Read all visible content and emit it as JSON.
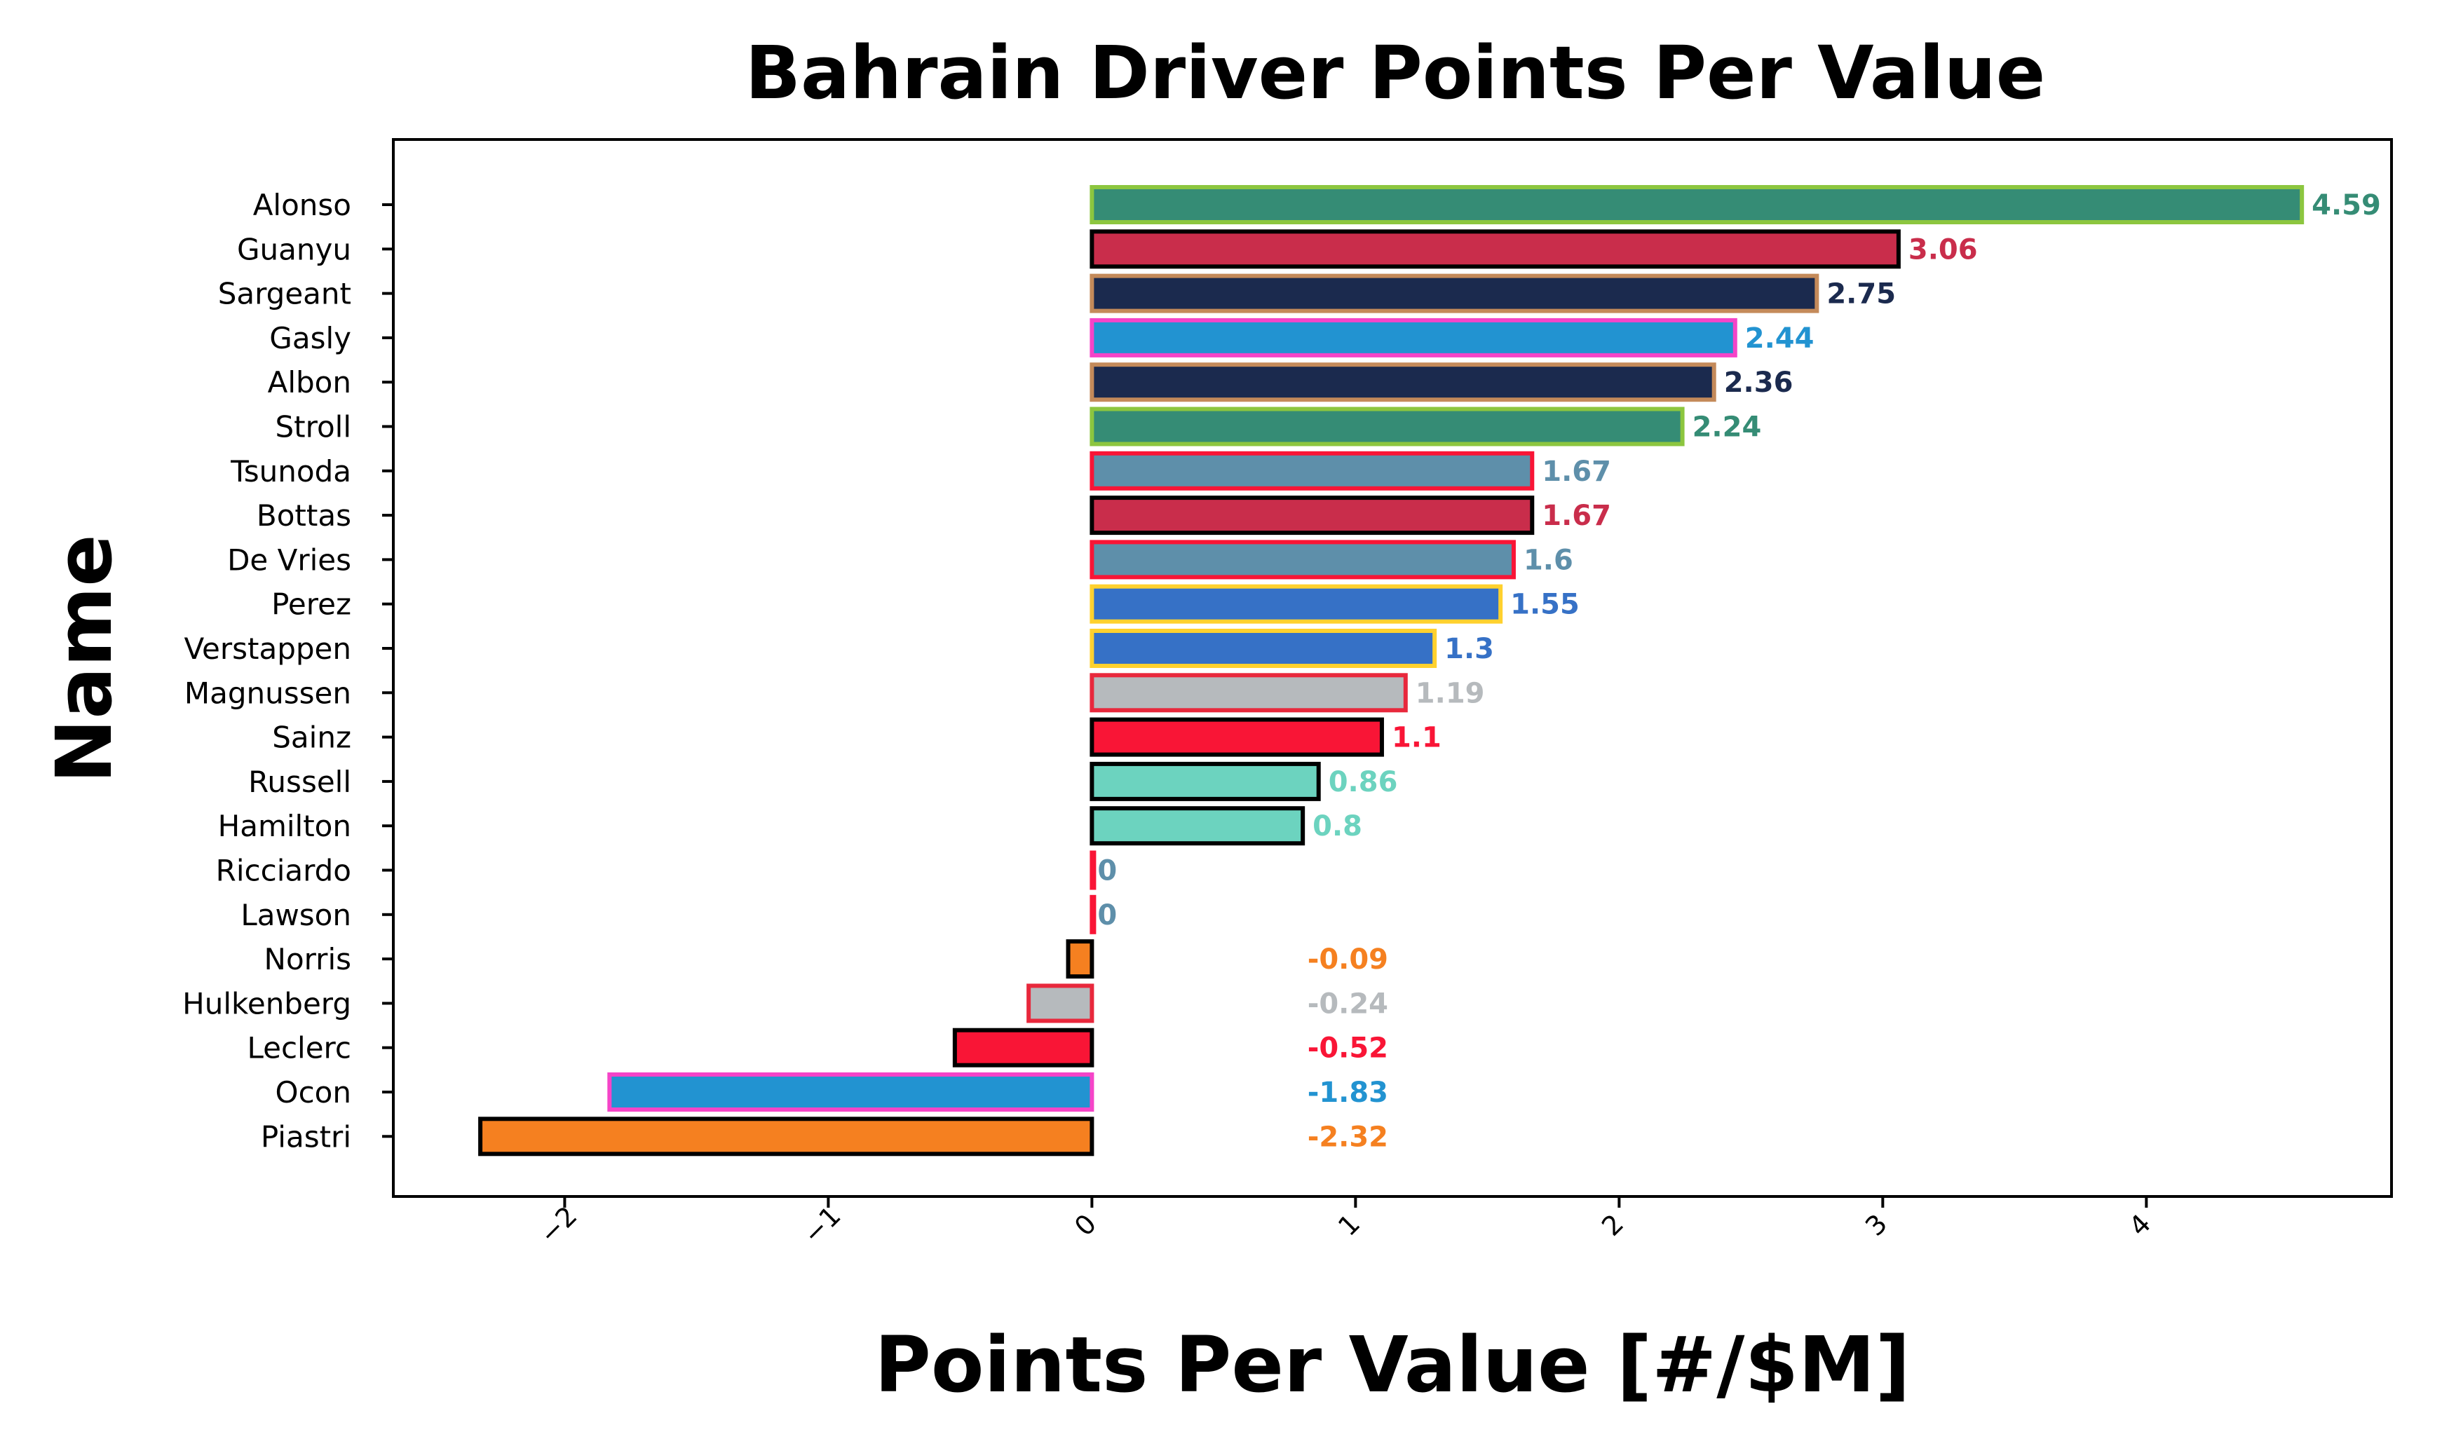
{
  "chart_data": {
    "type": "bar",
    "orientation": "horizontal",
    "title": "Bahrain Driver Points Per Value",
    "xlabel": "Points Per Value [#/$M]",
    "ylabel": "Name",
    "xlim": [
      -2.65,
      4.93
    ],
    "xticks": [
      -2,
      -1,
      0,
      1,
      2,
      3,
      4
    ],
    "xtick_labels": [
      "−2",
      "−1",
      "0",
      "1",
      "2",
      "3",
      "4"
    ],
    "grid": false,
    "bars": [
      {
        "name": "Alonso",
        "value": 4.59,
        "label": "4.59",
        "fill": "#358C75",
        "edge": "#8CC63F"
      },
      {
        "name": "Guanyu",
        "value": 3.06,
        "label": "3.06",
        "fill": "#C92D4B",
        "edge": "#000000"
      },
      {
        "name": "Sargeant",
        "value": 2.75,
        "label": "2.75",
        "fill": "#1B2A4E",
        "edge": "#C48A5A"
      },
      {
        "name": "Gasly",
        "value": 2.44,
        "label": "2.44",
        "fill": "#2293D1",
        "edge": "#F544C8"
      },
      {
        "name": "Albon",
        "value": 2.36,
        "label": "2.36",
        "fill": "#1B2A4E",
        "edge": "#C48A5A"
      },
      {
        "name": "Stroll",
        "value": 2.24,
        "label": "2.24",
        "fill": "#358C75",
        "edge": "#8CC63F"
      },
      {
        "name": "Tsunoda",
        "value": 1.67,
        "label": "1.67",
        "fill": "#5E8FAA",
        "edge": "#F91536"
      },
      {
        "name": "Bottas",
        "value": 1.67,
        "label": "1.67",
        "fill": "#C92D4B",
        "edge": "#000000"
      },
      {
        "name": "De Vries",
        "value": 1.6,
        "label": "1.6",
        "fill": "#5E8FAA",
        "edge": "#F91536"
      },
      {
        "name": "Perez",
        "value": 1.55,
        "label": "1.55",
        "fill": "#3671C6",
        "edge": "#FFD12E"
      },
      {
        "name": "Verstappen",
        "value": 1.3,
        "label": "1.3",
        "fill": "#3671C6",
        "edge": "#FFD12E"
      },
      {
        "name": "Magnussen",
        "value": 1.19,
        "label": "1.19",
        "fill": "#B6BABD",
        "edge": "#E8283C"
      },
      {
        "name": "Sainz",
        "value": 1.1,
        "label": "1.1",
        "fill": "#F91536",
        "edge": "#000000"
      },
      {
        "name": "Russell",
        "value": 0.86,
        "label": "0.86",
        "fill": "#6CD3BF",
        "edge": "#000000"
      },
      {
        "name": "Hamilton",
        "value": 0.8,
        "label": "0.8",
        "fill": "#6CD3BF",
        "edge": "#000000"
      },
      {
        "name": "Ricciardo",
        "value": 0,
        "label": "0",
        "fill": "#5E8FAA",
        "edge": "#F91536"
      },
      {
        "name": "Lawson",
        "value": 0,
        "label": "0",
        "fill": "#5E8FAA",
        "edge": "#F91536"
      },
      {
        "name": "Norris",
        "value": -0.09,
        "label": "-0.09",
        "fill": "#F58020",
        "edge": "#000000"
      },
      {
        "name": "Hulkenberg",
        "value": -0.24,
        "label": "-0.24",
        "fill": "#B6BABD",
        "edge": "#E8283C"
      },
      {
        "name": "Leclerc",
        "value": -0.52,
        "label": "-0.52",
        "fill": "#F91536",
        "edge": "#000000"
      },
      {
        "name": "Ocon",
        "value": -1.83,
        "label": "-1.83",
        "fill": "#2293D1",
        "edge": "#F544C8"
      },
      {
        "name": "Piastri",
        "value": -2.32,
        "label": "-2.32",
        "fill": "#F58020",
        "edge": "#000000"
      }
    ]
  }
}
